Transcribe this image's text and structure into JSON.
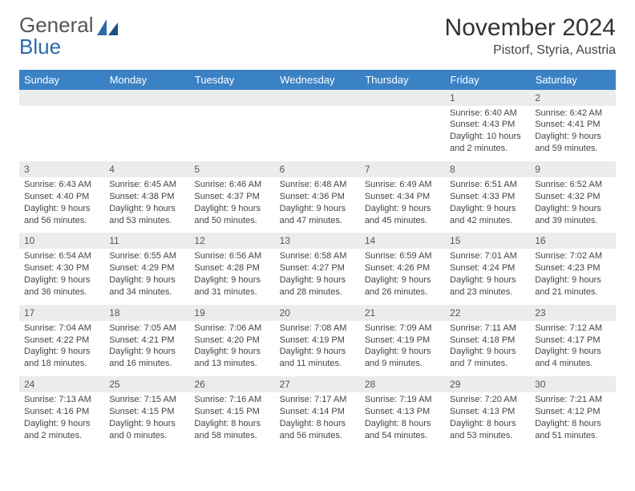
{
  "logo": {
    "line1": "General",
    "line2": "Blue"
  },
  "title": "November 2024",
  "location": "Pistorf, Styria, Austria",
  "colors": {
    "header_bg": "#3b82c4",
    "header_text": "#ffffff",
    "daynum_bg": "#ececec",
    "row_border": "#6a8bad",
    "logo_gray": "#555555",
    "logo_blue": "#2b6aa8"
  },
  "daysOfWeek": [
    "Sunday",
    "Monday",
    "Tuesday",
    "Wednesday",
    "Thursday",
    "Friday",
    "Saturday"
  ],
  "weeks": [
    {
      "nums": [
        "",
        "",
        "",
        "",
        "",
        "1",
        "2"
      ],
      "cells": [
        null,
        null,
        null,
        null,
        null,
        {
          "sunrise": "6:40 AM",
          "sunset": "4:43 PM",
          "daylight": "10 hours and 2 minutes."
        },
        {
          "sunrise": "6:42 AM",
          "sunset": "4:41 PM",
          "daylight": "9 hours and 59 minutes."
        }
      ]
    },
    {
      "nums": [
        "3",
        "4",
        "5",
        "6",
        "7",
        "8",
        "9"
      ],
      "cells": [
        {
          "sunrise": "6:43 AM",
          "sunset": "4:40 PM",
          "daylight": "9 hours and 56 minutes."
        },
        {
          "sunrise": "6:45 AM",
          "sunset": "4:38 PM",
          "daylight": "9 hours and 53 minutes."
        },
        {
          "sunrise": "6:46 AM",
          "sunset": "4:37 PM",
          "daylight": "9 hours and 50 minutes."
        },
        {
          "sunrise": "6:48 AM",
          "sunset": "4:36 PM",
          "daylight": "9 hours and 47 minutes."
        },
        {
          "sunrise": "6:49 AM",
          "sunset": "4:34 PM",
          "daylight": "9 hours and 45 minutes."
        },
        {
          "sunrise": "6:51 AM",
          "sunset": "4:33 PM",
          "daylight": "9 hours and 42 minutes."
        },
        {
          "sunrise": "6:52 AM",
          "sunset": "4:32 PM",
          "daylight": "9 hours and 39 minutes."
        }
      ]
    },
    {
      "nums": [
        "10",
        "11",
        "12",
        "13",
        "14",
        "15",
        "16"
      ],
      "cells": [
        {
          "sunrise": "6:54 AM",
          "sunset": "4:30 PM",
          "daylight": "9 hours and 36 minutes."
        },
        {
          "sunrise": "6:55 AM",
          "sunset": "4:29 PM",
          "daylight": "9 hours and 34 minutes."
        },
        {
          "sunrise": "6:56 AM",
          "sunset": "4:28 PM",
          "daylight": "9 hours and 31 minutes."
        },
        {
          "sunrise": "6:58 AM",
          "sunset": "4:27 PM",
          "daylight": "9 hours and 28 minutes."
        },
        {
          "sunrise": "6:59 AM",
          "sunset": "4:26 PM",
          "daylight": "9 hours and 26 minutes."
        },
        {
          "sunrise": "7:01 AM",
          "sunset": "4:24 PM",
          "daylight": "9 hours and 23 minutes."
        },
        {
          "sunrise": "7:02 AM",
          "sunset": "4:23 PM",
          "daylight": "9 hours and 21 minutes."
        }
      ]
    },
    {
      "nums": [
        "17",
        "18",
        "19",
        "20",
        "21",
        "22",
        "23"
      ],
      "cells": [
        {
          "sunrise": "7:04 AM",
          "sunset": "4:22 PM",
          "daylight": "9 hours and 18 minutes."
        },
        {
          "sunrise": "7:05 AM",
          "sunset": "4:21 PM",
          "daylight": "9 hours and 16 minutes."
        },
        {
          "sunrise": "7:06 AM",
          "sunset": "4:20 PM",
          "daylight": "9 hours and 13 minutes."
        },
        {
          "sunrise": "7:08 AM",
          "sunset": "4:19 PM",
          "daylight": "9 hours and 11 minutes."
        },
        {
          "sunrise": "7:09 AM",
          "sunset": "4:19 PM",
          "daylight": "9 hours and 9 minutes."
        },
        {
          "sunrise": "7:11 AM",
          "sunset": "4:18 PM",
          "daylight": "9 hours and 7 minutes."
        },
        {
          "sunrise": "7:12 AM",
          "sunset": "4:17 PM",
          "daylight": "9 hours and 4 minutes."
        }
      ]
    },
    {
      "nums": [
        "24",
        "25",
        "26",
        "27",
        "28",
        "29",
        "30"
      ],
      "cells": [
        {
          "sunrise": "7:13 AM",
          "sunset": "4:16 PM",
          "daylight": "9 hours and 2 minutes."
        },
        {
          "sunrise": "7:15 AM",
          "sunset": "4:15 PM",
          "daylight": "9 hours and 0 minutes."
        },
        {
          "sunrise": "7:16 AM",
          "sunset": "4:15 PM",
          "daylight": "8 hours and 58 minutes."
        },
        {
          "sunrise": "7:17 AM",
          "sunset": "4:14 PM",
          "daylight": "8 hours and 56 minutes."
        },
        {
          "sunrise": "7:19 AM",
          "sunset": "4:13 PM",
          "daylight": "8 hours and 54 minutes."
        },
        {
          "sunrise": "7:20 AM",
          "sunset": "4:13 PM",
          "daylight": "8 hours and 53 minutes."
        },
        {
          "sunrise": "7:21 AM",
          "sunset": "4:12 PM",
          "daylight": "8 hours and 51 minutes."
        }
      ]
    }
  ],
  "labels": {
    "sunrise": "Sunrise: ",
    "sunset": "Sunset: ",
    "daylight": "Daylight: "
  }
}
